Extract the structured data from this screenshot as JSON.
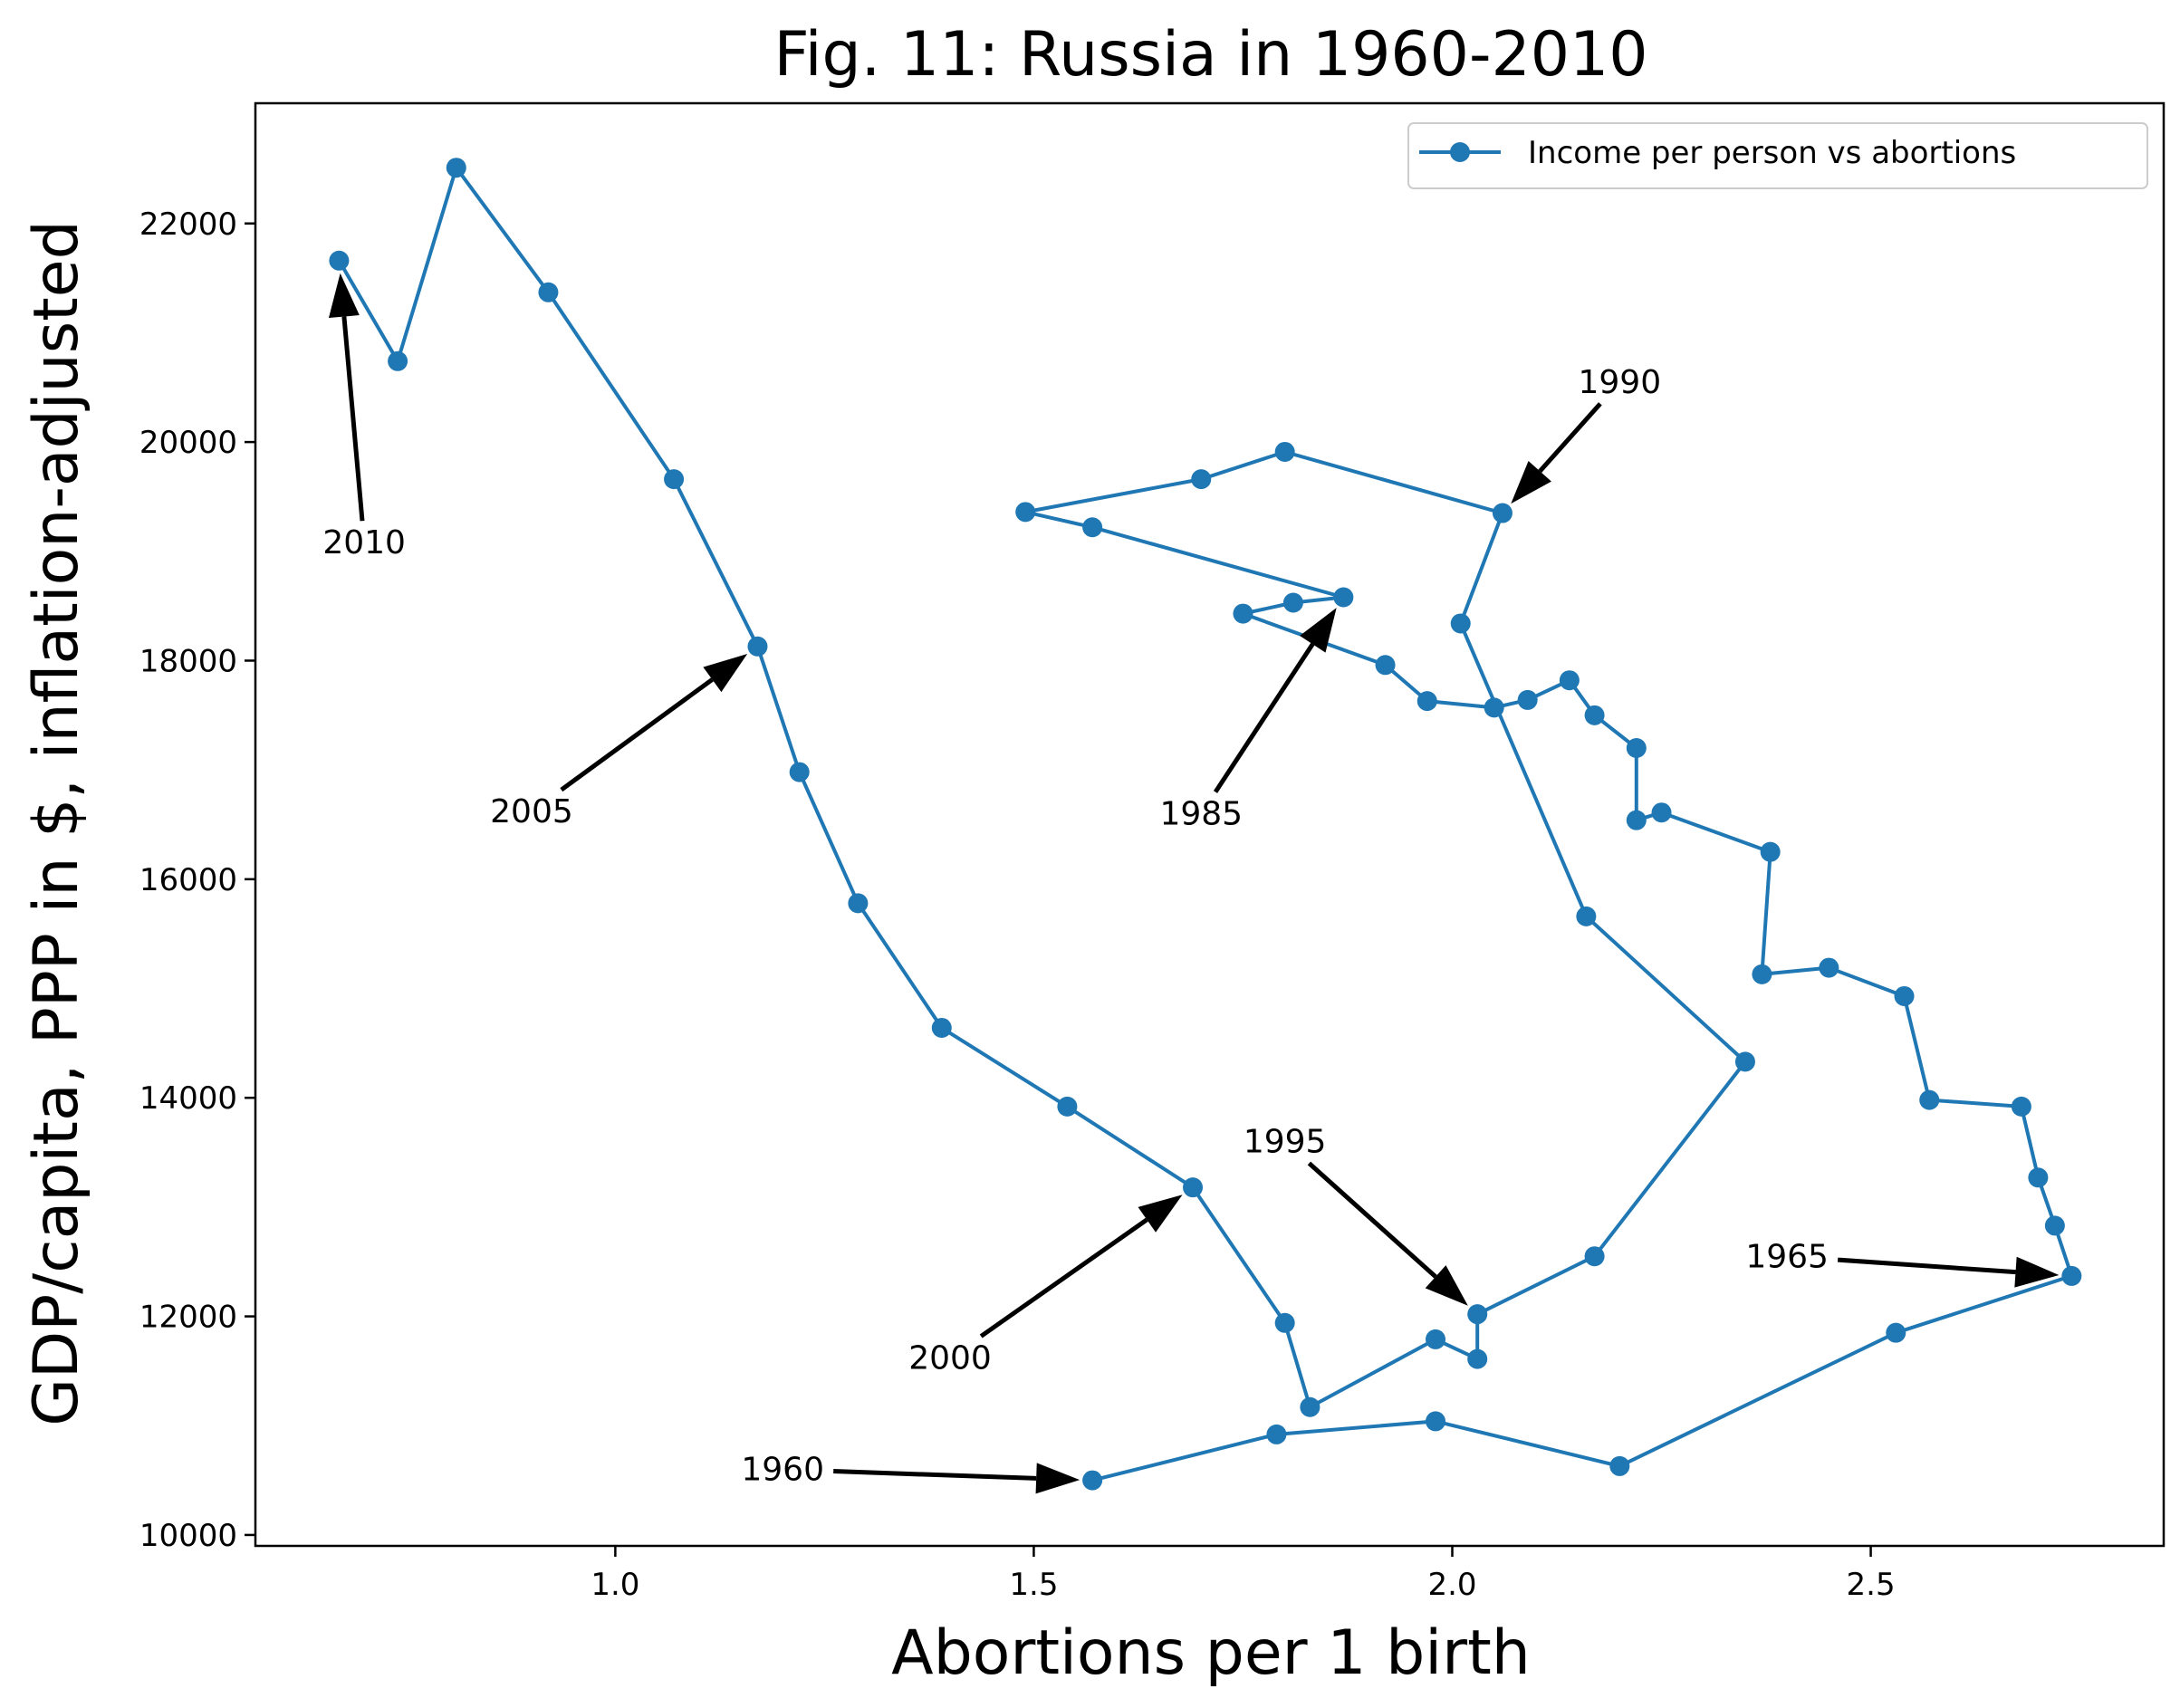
{
  "chart_data": {
    "type": "line",
    "title": "Fig. 11: Russia in 1960-2010",
    "xlabel": "Abortions per 1 birth",
    "ylabel": "GDP/capita, PPP in $, inflation-adjusted",
    "xlim": [
      0.57,
      2.85
    ],
    "ylim": [
      9900,
      23100
    ],
    "xticks": [
      1.0,
      1.5,
      2.0,
      2.5
    ],
    "xtick_labels": [
      "1.0",
      "1.5",
      "2.0",
      "2.5"
    ],
    "yticks": [
      10000,
      12000,
      14000,
      16000,
      18000,
      20000,
      22000
    ],
    "ytick_labels": [
      "10000",
      "12000",
      "14000",
      "16000",
      "18000",
      "20000",
      "22000"
    ],
    "grid": false,
    "legend": {
      "position": "top-right",
      "entries": [
        "Income per person vs abortions"
      ]
    },
    "series": [
      {
        "name": "Income per person vs abortions",
        "color": "#1f77b4",
        "marker": "circle",
        "points": [
          [
            1.57,
            10500
          ],
          [
            1.79,
            10920
          ],
          [
            1.98,
            11040
          ],
          [
            2.2,
            10630
          ],
          [
            2.53,
            11850
          ],
          [
            2.74,
            12370
          ],
          [
            2.72,
            12830
          ],
          [
            2.7,
            13270
          ],
          [
            2.68,
            13920
          ],
          [
            2.57,
            13980
          ],
          [
            2.54,
            14930
          ],
          [
            2.45,
            15190
          ],
          [
            2.37,
            15130
          ],
          [
            2.38,
            16250
          ],
          [
            2.25,
            16610
          ],
          [
            2.22,
            16540
          ],
          [
            2.22,
            17200
          ],
          [
            2.17,
            17500
          ],
          [
            2.14,
            17820
          ],
          [
            2.09,
            17640
          ],
          [
            2.05,
            17570
          ],
          [
            1.97,
            17630
          ],
          [
            1.92,
            17960
          ],
          [
            1.75,
            18430
          ],
          [
            1.81,
            18530
          ],
          [
            1.87,
            18580
          ],
          [
            1.57,
            19220
          ],
          [
            1.49,
            19360
          ],
          [
            1.7,
            19660
          ],
          [
            1.8,
            19910
          ],
          [
            2.06,
            19350
          ],
          [
            2.01,
            18340
          ],
          [
            2.16,
            15660
          ],
          [
            2.35,
            14330
          ],
          [
            2.17,
            12550
          ],
          [
            2.03,
            12020
          ],
          [
            2.03,
            11610
          ],
          [
            1.98,
            11790
          ],
          [
            1.83,
            11170
          ],
          [
            1.8,
            11940
          ],
          [
            1.69,
            13180
          ],
          [
            1.54,
            13920
          ],
          [
            1.39,
            14640
          ],
          [
            1.29,
            15780
          ],
          [
            1.22,
            16980
          ],
          [
            1.17,
            18130
          ],
          [
            1.07,
            19660
          ],
          [
            0.92,
            21370
          ],
          [
            0.81,
            22510
          ],
          [
            0.74,
            20740
          ],
          [
            0.67,
            21660
          ]
        ]
      }
    ],
    "annotations": [
      {
        "text": "1960",
        "xy": [
          1.57,
          10500
        ],
        "xytext": [
          1.2,
          10500
        ]
      },
      {
        "text": "1965",
        "xy": [
          2.74,
          12370
        ],
        "xytext": [
          2.4,
          12450
        ]
      },
      {
        "text": "1985",
        "xy": [
          1.87,
          18580
        ],
        "xytext": [
          1.7,
          16500
        ]
      },
      {
        "text": "1990",
        "xy": [
          2.06,
          19350
        ],
        "xytext": [
          2.2,
          20450
        ]
      },
      {
        "text": "1995",
        "xy": [
          2.03,
          12020
        ],
        "xytext": [
          1.8,
          13500
        ]
      },
      {
        "text": "2000",
        "xy": [
          1.69,
          13180
        ],
        "xytext": [
          1.4,
          11520
        ]
      },
      {
        "text": "2005",
        "xy": [
          1.17,
          18130
        ],
        "xytext": [
          0.9,
          16520
        ]
      },
      {
        "text": "2010",
        "xy": [
          0.67,
          21660
        ],
        "xytext": [
          0.7,
          18980
        ]
      }
    ]
  }
}
